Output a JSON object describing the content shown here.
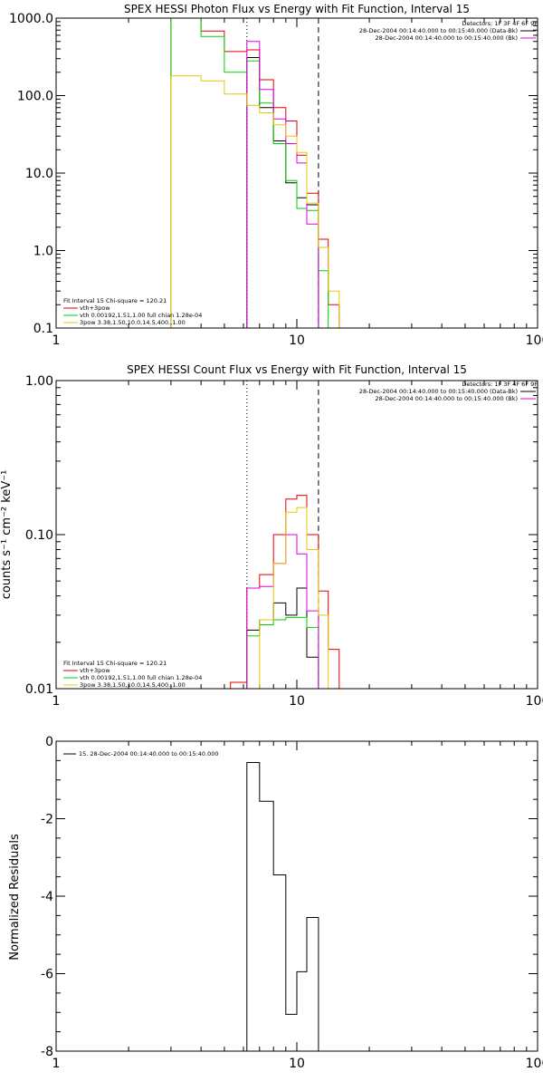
{
  "colors": {
    "black": "#000000",
    "red": "#e00000",
    "green": "#00d000",
    "magenta": "#e000e0",
    "yellow": "#e6c800"
  },
  "chart_data": [
    {
      "type": "line",
      "title": "SPEX HESSI Photon Flux vs Energy with Fit Function, Interval 15",
      "xlabel": "",
      "ylabel": "",
      "xscale": "log",
      "yscale": "log",
      "xlim": [
        1,
        100
      ],
      "ylim": [
        0.1,
        1000
      ],
      "x_ticks": [
        1,
        10,
        100
      ],
      "x_tick_labels": [
        "1",
        "10",
        "100"
      ],
      "y_ticks": [
        0.1,
        1,
        10,
        100,
        1000
      ],
      "y_tick_labels": [
        "0.1",
        "1.0",
        "10.0",
        "100.0",
        "1000.0"
      ],
      "vlines": [
        {
          "x": 6.2,
          "style": "dotted",
          "color": "#000000"
        },
        {
          "x": 12.3,
          "style": "dashed",
          "color": "#000000"
        }
      ],
      "legend_top": {
        "placement": "top-right",
        "detectors": "Detectors: 1F 3F 4F 6F 9F",
        "entries": [
          {
            "label": "28-Dec-2004 00:14:40.000 to 00:15:40.000 (Data-Bk)",
            "color": "#000000"
          },
          {
            "label": "28-Dec-2004 00:14:40.000 to 00:15:40.000 (Bk)",
            "color": "#e000e0"
          }
        ]
      },
      "legend_bottom": {
        "placement": "bottom-left",
        "header": "Fit Interval 15   Chi-square = 120.21",
        "entries": [
          {
            "label": "vth+3pow",
            "color": "#e00000"
          },
          {
            "label": "vth 0.00192,1.51,1.00  full chian 1.28e-04",
            "color": "#00d000"
          },
          {
            "label": "3pow 3.38,1.50,10.0,14.5,400.,1.00",
            "color": "#e6c800"
          }
        ]
      },
      "series": [
        {
          "color": "#000000",
          "edges": [
            6.2,
            7,
            8,
            9,
            10,
            11,
            12.3
          ],
          "values": [
            310,
            70,
            26,
            7.5,
            4.8,
            3.9
          ]
        },
        {
          "color": "#e00000",
          "edges": [
            3,
            4,
            5,
            6.2,
            7,
            8,
            9,
            10,
            11,
            12.3,
            13.5,
            15
          ],
          "values": [
            1000,
            680,
            370,
            390,
            160,
            70,
            47,
            17,
            5.5,
            1.4,
            0.2
          ]
        },
        {
          "color": "#00d000",
          "edges": [
            3,
            4,
            5,
            6.2,
            7,
            8,
            9,
            10,
            11,
            12.3,
            13.5
          ],
          "values": [
            1000,
            580,
            200,
            280,
            80,
            24,
            8.0,
            3.5,
            3.3,
            0.55
          ]
        },
        {
          "color": "#e000e0",
          "edges": [
            6.2,
            7,
            8,
            9,
            10,
            11,
            12.3
          ],
          "values": [
            500,
            120,
            50,
            24,
            13.5,
            2.2
          ]
        },
        {
          "color": "#e6c800",
          "edges": [
            3,
            4,
            5,
            6.2,
            7,
            8,
            9,
            10,
            11,
            12.3,
            13.5,
            15
          ],
          "values": [
            180,
            155,
            105,
            75,
            60,
            42,
            30,
            18.5,
            4.1,
            1.1,
            0.3
          ]
        }
      ]
    },
    {
      "type": "line",
      "title": "SPEX HESSI Count Flux vs Energy with Fit Function, Interval 15",
      "xlabel": "",
      "ylabel": "counts s⁻¹ cm⁻² keV⁻¹",
      "xscale": "log",
      "yscale": "log",
      "xlim": [
        1,
        100
      ],
      "ylim": [
        0.01,
        1
      ],
      "x_ticks": [
        1,
        10,
        100
      ],
      "x_tick_labels": [
        "1",
        "10",
        "100"
      ],
      "y_ticks": [
        0.01,
        0.1,
        1
      ],
      "y_tick_labels": [
        "0.01",
        "0.10",
        "1.00"
      ],
      "vlines": [
        {
          "x": 6.2,
          "style": "dotted",
          "color": "#000000"
        },
        {
          "x": 12.3,
          "style": "dashed",
          "color": "#000000"
        }
      ],
      "legend_top": {
        "placement": "top-right",
        "detectors": "Detectors: 1F 3F 4F 6F 9F",
        "entries": [
          {
            "label": "28-Dec-2004 00:14:40.000 to 00:15:40.000 (Data-Bk)",
            "color": "#000000"
          },
          {
            "label": "28-Dec-2004 00:14:40.000 to 00:15:40.000 (Bk)",
            "color": "#e000e0"
          }
        ]
      },
      "legend_bottom": {
        "placement": "bottom-left",
        "header": "Fit Interval 15   Chi-square = 120.21",
        "entries": [
          {
            "label": "vth+3pow",
            "color": "#e00000"
          },
          {
            "label": "vth 0.00192,1.51,1.00  full chian 1.28e-04",
            "color": "#00d000"
          },
          {
            "label": "3pow 3.38,1.50,10.0,14.5,400.,1.00",
            "color": "#e6c800"
          }
        ]
      },
      "series": [
        {
          "color": "#000000",
          "edges": [
            6.2,
            7,
            8,
            9,
            10,
            11,
            12.3
          ],
          "values": [
            0.024,
            0.028,
            0.036,
            0.03,
            0.045,
            0.016
          ]
        },
        {
          "color": "#e00000",
          "edges": [
            5.3,
            6.2,
            7,
            8,
            9,
            10,
            11,
            12.3,
            13.5,
            15
          ],
          "values": [
            0.011,
            0.045,
            0.055,
            0.1,
            0.17,
            0.18,
            0.1,
            0.043,
            0.018
          ]
        },
        {
          "color": "#00d000",
          "edges": [
            6.2,
            7,
            8,
            9,
            10,
            11,
            12.3
          ],
          "values": [
            0.022,
            0.026,
            0.028,
            0.029,
            0.029,
            0.025
          ]
        },
        {
          "color": "#e000e0",
          "edges": [
            6.2,
            7,
            8,
            9,
            10,
            11,
            12.3
          ],
          "values": [
            0.045,
            0.046,
            0.065,
            0.1,
            0.075,
            0.032
          ]
        },
        {
          "color": "#e6c800",
          "edges": [
            7,
            8,
            9,
            10,
            11,
            12.3,
            13.5
          ],
          "values": [
            0.028,
            0.065,
            0.14,
            0.15,
            0.08,
            0.03
          ]
        }
      ]
    },
    {
      "type": "line",
      "title": "",
      "xlabel": "",
      "ylabel": "Normalized Residuals",
      "xscale": "log",
      "yscale": "linear",
      "xlim": [
        1,
        100
      ],
      "ylim": [
        -8,
        0
      ],
      "x_ticks": [
        1,
        10,
        100
      ],
      "x_tick_labels": [
        "1",
        "10",
        "100"
      ],
      "y_ticks": [
        -8,
        -6,
        -4,
        -2,
        0
      ],
      "y_tick_labels": [
        "-8",
        "-6",
        "-4",
        "-2",
        "0"
      ],
      "legend": {
        "placement": "top-left",
        "entries": [
          {
            "label": "15. 28-Dec-2004 00:14:40.000 to 00:15:40.000",
            "color": "#000000"
          }
        ]
      },
      "series": [
        {
          "color": "#000000",
          "edges": [
            6.2,
            7,
            8,
            9,
            10,
            11,
            12.3
          ],
          "values": [
            -0.55,
            -1.55,
            -3.45,
            -7.05,
            -5.95,
            -4.55
          ]
        }
      ]
    }
  ]
}
